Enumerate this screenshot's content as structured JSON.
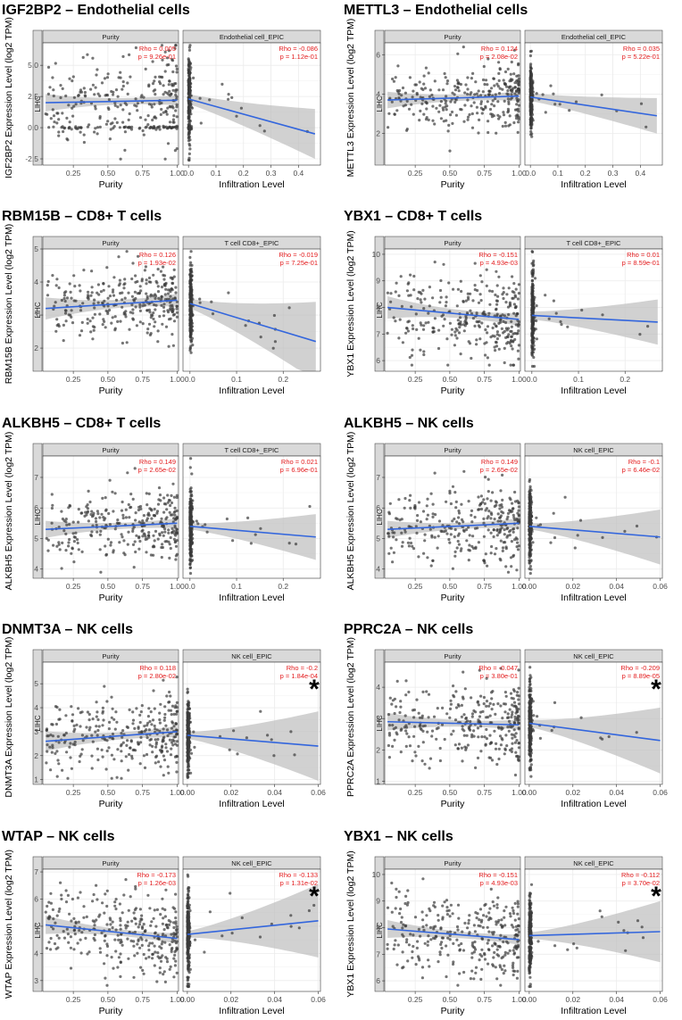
{
  "colors": {
    "point": "#3a3a3a",
    "line": "#3366dd",
    "band": "#bdbdbd",
    "strip": "#d9d9d9",
    "stat": "#e31a1c",
    "grid": "#ebebeb",
    "axis": "#333333"
  },
  "common": {
    "ylabel_suffix": "Expression Level (log2 TPM)",
    "xlabel_left": "Purity",
    "xlabel_right": "Infiltration Level",
    "strip_left": "Purity",
    "side_label": "LIHC",
    "purity_ticks": [
      "0.25",
      "0.50",
      "0.75",
      "1.00"
    ],
    "purity_tick_values": [
      0.25,
      0.5,
      0.75,
      1.0
    ],
    "purity_xlim": [
      0.03,
      1.01
    ]
  },
  "chart_data": [
    {
      "type": "scatter",
      "title": "IGF2BP2 – Endothelial cells",
      "gene": "IGF2BP2",
      "cell_strip": "Endothelial cell_EPIC",
      "ylim": [
        -3,
        6.8
      ],
      "yticks": [
        -2.5,
        0,
        2.5,
        5
      ],
      "ytick_labels": [
        "-2.5",
        "0.0",
        "2.5",
        "5.0"
      ],
      "purity": {
        "rho": "Rho = 0.005",
        "p": "p = 9.26e-01",
        "fit": [
          2.0,
          2.2
        ],
        "band": 0.25,
        "ymean": 2.2,
        "ysd": 1.8,
        "floor": 0
      },
      "infil": {
        "rho": "Rho = -0.086",
        "p": "p = 1.12e-01",
        "xlim": [
          -0.02,
          0.48
        ],
        "xticks": [
          0,
          0.1,
          0.2,
          0.3,
          0.4
        ],
        "xtick_labels": [
          "0.0",
          "0.1",
          "0.2",
          "0.3",
          "0.4"
        ],
        "fit_at_max": -0.5,
        "fit0": 2.3,
        "band0": 0.4,
        "band_max": 2.0,
        "xmax": 0.46
      },
      "star": false
    },
    {
      "type": "scatter",
      "title": "METTL3 – Endothelial cells",
      "gene": "METTL3",
      "cell_strip": "Endothelial cell_EPIC",
      "ylim": [
        0.4,
        6.6
      ],
      "yticks": [
        2,
        4,
        6
      ],
      "ytick_labels": [
        "2",
        "4",
        "6"
      ],
      "purity": {
        "rho": "Rho = 0.124",
        "p": "p = 2.08e-02",
        "fit": [
          3.7,
          3.9
        ],
        "band": 0.15,
        "ymean": 3.8,
        "ysd": 0.8,
        "floor": null
      },
      "infil": {
        "rho": "Rho = 0.035",
        "p": "p = 5.22e-01",
        "xlim": [
          -0.02,
          0.48
        ],
        "xticks": [
          0,
          0.1,
          0.2,
          0.3,
          0.4
        ],
        "xtick_labels": [
          "0.0",
          "0.1",
          "0.2",
          "0.3",
          "0.4"
        ],
        "fit_at_max": 2.9,
        "fit0": 3.85,
        "band0": 0.2,
        "band_max": 0.9,
        "xmax": 0.46
      },
      "star": false
    },
    {
      "type": "scatter",
      "title": "RBM15B – CD8+ T cells",
      "gene": "RBM15B",
      "cell_strip": "T cell CD8+_EPIC",
      "ylim": [
        1.3,
        5.0
      ],
      "yticks": [
        2,
        3,
        4,
        5
      ],
      "ytick_labels": [
        "2",
        "3",
        "4",
        "5"
      ],
      "purity": {
        "rho": "Rho = 0.126",
        "p": "p = 1.93e-02",
        "fit": [
          3.2,
          3.45
        ],
        "band": 0.12,
        "ymean": 3.3,
        "ysd": 0.55,
        "floor": null
      },
      "infil": {
        "rho": "Rho = -0.019",
        "p": "p = 7.25e-01",
        "xlim": [
          -0.015,
          0.28
        ],
        "xticks": [
          0,
          0.1,
          0.2
        ],
        "xtick_labels": [
          "0.0",
          "0.1",
          "0.2"
        ],
        "fit_at_max": 2.2,
        "fit0": 3.35,
        "band0": 0.15,
        "band_max": 1.2,
        "xmax": 0.27
      },
      "star": false
    },
    {
      "type": "scatter",
      "title": "YBX1 – CD8+ T cells",
      "gene": "YBX1",
      "cell_strip": "T cell CD8+_EPIC",
      "ylim": [
        5.6,
        10.2
      ],
      "yticks": [
        6,
        7,
        8,
        9,
        10
      ],
      "ytick_labels": [
        "6",
        "7",
        "8",
        "9",
        "10"
      ],
      "purity": {
        "rho": "Rho = -0.151",
        "p": "p = 4.93e-03",
        "fit": [
          8.0,
          7.55
        ],
        "band": 0.15,
        "ymean": 7.7,
        "ysd": 0.8,
        "floor": null
      },
      "infil": {
        "rho": "Rho = 0.01",
        "p": "p = 8.59e-01",
        "xlim": [
          -0.015,
          0.28
        ],
        "xticks": [
          0,
          0.1,
          0.2
        ],
        "xtick_labels": [
          "0.0",
          "0.1",
          "0.2"
        ],
        "fit_at_max": 7.45,
        "fit0": 7.7,
        "band0": 0.15,
        "band_max": 0.85,
        "xmax": 0.27
      },
      "star": false
    },
    {
      "type": "scatter",
      "title": "ALKBH5 – CD8+ T cells",
      "gene": "ALKBH5",
      "cell_strip": "T cell CD8+_EPIC",
      "ylim": [
        3.7,
        7.7
      ],
      "yticks": [
        4,
        5,
        6,
        7
      ],
      "ytick_labels": [
        "4",
        "5",
        "6",
        "7"
      ],
      "purity": {
        "rho": "Rho = 0.149",
        "p": "p = 2.65e-02",
        "fit": [
          5.3,
          5.5
        ],
        "band": 0.1,
        "ymean": 5.4,
        "ysd": 0.6,
        "floor": null
      },
      "infil": {
        "rho": "Rho = 0.021",
        "p": "p = 6.96e-01",
        "xlim": [
          -0.015,
          0.28
        ],
        "xticks": [
          0,
          0.1,
          0.2
        ],
        "xtick_labels": [
          "0.0",
          "0.1",
          "0.2"
        ],
        "fit_at_max": 5.05,
        "fit0": 5.4,
        "band0": 0.1,
        "band_max": 0.75,
        "xmax": 0.27
      },
      "star": false
    },
    {
      "type": "scatter",
      "title": "ALKBH5 – NK cells",
      "gene": "ALKBH5",
      "cell_strip": "NK cell_EPIC",
      "ylim": [
        3.7,
        7.7
      ],
      "yticks": [
        4,
        5,
        6,
        7
      ],
      "ytick_labels": [
        "4",
        "5",
        "6",
        "7"
      ],
      "purity": {
        "rho": "Rho = 0.149",
        "p": "p = 2.65e-02",
        "fit": [
          5.3,
          5.5
        ],
        "band": 0.1,
        "ymean": 5.4,
        "ysd": 0.6,
        "floor": null
      },
      "infil": {
        "rho": "Rho = -0.1",
        "p": "p = 6.46e-02",
        "xlim": [
          -0.002,
          0.061
        ],
        "xticks": [
          0,
          0.02,
          0.04,
          0.06
        ],
        "xtick_labels": [
          "0.00",
          "0.02",
          "0.04",
          "0.06"
        ],
        "fit_at_max": 5.05,
        "fit0": 5.4,
        "band0": 0.1,
        "band_max": 0.9,
        "xmax": 0.06
      },
      "star": false
    },
    {
      "type": "scatter",
      "title": "DNMT3A – NK cells",
      "gene": "DNMT3A",
      "cell_strip": "NK cell_EPIC",
      "ylim": [
        0.8,
        5.9
      ],
      "yticks": [
        1,
        2,
        3,
        4,
        5
      ],
      "ytick_labels": [
        "1",
        "2",
        "3",
        "4",
        "5"
      ],
      "purity": {
        "rho": "Rho = 0.118",
        "p": "p = 2.80e-02",
        "fit": [
          2.6,
          3.0
        ],
        "band": 0.15,
        "ymean": 2.8,
        "ysd": 0.8,
        "floor": null
      },
      "infil": {
        "rho": "Rho = -0.2",
        "p": "p = 1.84e-04",
        "xlim": [
          -0.002,
          0.061
        ],
        "xticks": [
          0,
          0.02,
          0.04,
          0.06
        ],
        "xtick_labels": [
          "0.00",
          "0.02",
          "0.04",
          "0.06"
        ],
        "fit_at_max": 2.4,
        "fit0": 2.85,
        "band0": 0.15,
        "band_max": 1.45,
        "xmax": 0.06
      },
      "star": true
    },
    {
      "type": "scatter",
      "title": "PPRC2A – NK cells",
      "gene": "PPRC2A",
      "cell_strip": "NK cell_EPIC",
      "ylim": [
        0.9,
        4.8
      ],
      "yticks": [
        1,
        2,
        3,
        4
      ],
      "ytick_labels": [
        "1",
        "2",
        "3",
        "4"
      ],
      "purity": {
        "rho": "Rho = -0.047",
        "p": "p = 3.80e-01",
        "fit": [
          2.9,
          2.8
        ],
        "band": 0.1,
        "ymean": 2.85,
        "ysd": 0.65,
        "floor": null
      },
      "infil": {
        "rho": "Rho = -0.209",
        "p": "p = 8.89e-05",
        "xlim": [
          -0.002,
          0.061
        ],
        "xticks": [
          0,
          0.02,
          0.04,
          0.06
        ],
        "xtick_labels": [
          "0.00",
          "0.02",
          "0.04",
          "0.06"
        ],
        "fit_at_max": 2.3,
        "fit0": 2.85,
        "band0": 0.12,
        "band_max": 1.05,
        "xmax": 0.06
      },
      "star": true
    },
    {
      "type": "scatter",
      "title": "WTAP – NK cells",
      "gene": "WTAP",
      "cell_strip": "NK cell_EPIC",
      "ylim": [
        2.6,
        7.1
      ],
      "yticks": [
        3,
        4,
        5,
        6,
        7
      ],
      "ytick_labels": [
        "3",
        "4",
        "5",
        "6",
        "7"
      ],
      "purity": {
        "rho": "Rho = -0.173",
        "p": "p = 1.26e-03",
        "fit": [
          5.05,
          4.55
        ],
        "band": 0.12,
        "ymean": 4.75,
        "ysd": 0.75,
        "floor": null
      },
      "infil": {
        "rho": "Rho = -0.133",
        "p": "p = 1.31e-02",
        "xlim": [
          -0.002,
          0.061
        ],
        "xticks": [
          0,
          0.02,
          0.04,
          0.06
        ],
        "xtick_labels": [
          "0.00",
          "0.02",
          "0.04",
          "0.06"
        ],
        "fit_at_max": 5.2,
        "fit0": 4.7,
        "band0": 0.12,
        "band_max": 1.35,
        "xmax": 0.06
      },
      "star": true
    },
    {
      "type": "scatter",
      "title": "YBX1 – NK cells",
      "gene": "YBX1",
      "cell_strip": "NK cell_EPIC",
      "ylim": [
        5.6,
        10.2
      ],
      "yticks": [
        6,
        7,
        8,
        9,
        10
      ],
      "ytick_labels": [
        "6",
        "7",
        "8",
        "9",
        "10"
      ],
      "purity": {
        "rho": "Rho = -0.151",
        "p": "p = 4.93e-03",
        "fit": [
          7.95,
          7.55
        ],
        "band": 0.12,
        "ymean": 7.7,
        "ysd": 0.8,
        "floor": null
      },
      "infil": {
        "rho": "Rho = -0.112",
        "p": "p = 3.70e-02",
        "xlim": [
          -0.002,
          0.061
        ],
        "xticks": [
          0,
          0.02,
          0.04,
          0.06
        ],
        "xtick_labels": [
          "0.00",
          "0.02",
          "0.04",
          "0.06"
        ],
        "fit_at_max": 7.85,
        "fit0": 7.7,
        "band0": 0.12,
        "band_max": 1.15,
        "xmax": 0.06
      },
      "star": true
    }
  ]
}
